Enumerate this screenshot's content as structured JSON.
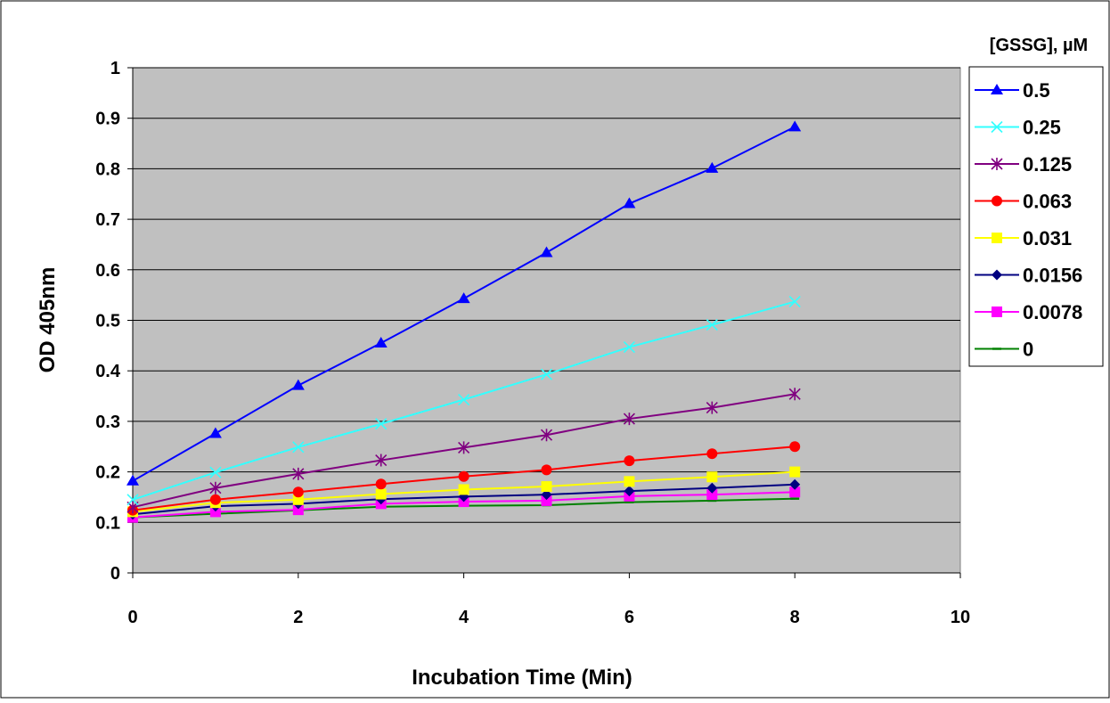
{
  "chart_data": {
    "type": "line",
    "title": "",
    "xlabel": "Incubation Time (Min)",
    "ylabel": "OD 405nm",
    "xlim": [
      0,
      10
    ],
    "ylim": [
      0,
      1
    ],
    "x_ticks": [
      "0",
      "2",
      "4",
      "6",
      "8",
      "10"
    ],
    "y_ticks": [
      "0",
      "0.1",
      "0.2",
      "0.3",
      "0.4",
      "0.5",
      "0.6",
      "0.7",
      "0.8",
      "0.9",
      "1"
    ],
    "grid": "horizontal",
    "plot_background": "#c0c0c0",
    "legend_title": "[GSSG], µM",
    "legend_position": "right",
    "x": [
      0,
      1,
      2,
      3,
      4,
      5,
      6,
      7,
      8
    ],
    "series": [
      {
        "name": "0.5",
        "color": "#0000ff",
        "marker": "triangle",
        "values": [
          0.182,
          0.276,
          0.371,
          0.455,
          0.543,
          0.634,
          0.731,
          0.801,
          0.883
        ]
      },
      {
        "name": "0.25",
        "color": "#33ffff",
        "marker": "x",
        "values": [
          0.145,
          0.199,
          0.249,
          0.295,
          0.343,
          0.393,
          0.447,
          0.491,
          0.537
        ]
      },
      {
        "name": "0.125",
        "color": "#800080",
        "marker": "star",
        "values": [
          0.13,
          0.168,
          0.196,
          0.223,
          0.248,
          0.273,
          0.305,
          0.327,
          0.354
        ]
      },
      {
        "name": "0.063",
        "color": "#ff0000",
        "marker": "circle",
        "values": [
          0.124,
          0.145,
          0.16,
          0.176,
          0.191,
          0.204,
          0.222,
          0.236,
          0.25
        ]
      },
      {
        "name": "0.031",
        "color": "#ffff00",
        "marker": "square",
        "values": [
          0.121,
          0.139,
          0.145,
          0.156,
          0.165,
          0.171,
          0.181,
          0.19,
          0.2
        ]
      },
      {
        "name": "0.0156",
        "color": "#000080",
        "marker": "diamond",
        "values": [
          0.116,
          0.132,
          0.137,
          0.146,
          0.151,
          0.155,
          0.162,
          0.168,
          0.175
        ]
      },
      {
        "name": "0.0078",
        "color": "#ff00ff",
        "marker": "square",
        "values": [
          0.11,
          0.121,
          0.125,
          0.137,
          0.141,
          0.143,
          0.152,
          0.155,
          0.16
        ]
      },
      {
        "name": "0",
        "color": "#008000",
        "marker": "dash",
        "values": [
          0.11,
          0.117,
          0.124,
          0.131,
          0.133,
          0.134,
          0.14,
          0.143,
          0.147
        ]
      }
    ]
  }
}
